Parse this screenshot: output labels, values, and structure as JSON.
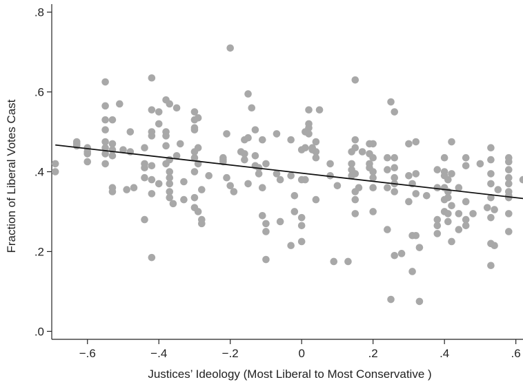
{
  "chart_data": {
    "type": "scatter",
    "title": "",
    "xlabel": "Justices’ Ideology (Most Liberal to Most Conservative )",
    "ylabel": "Fraction of Liberal Votes Cast",
    "xlim": [
      -0.7,
      0.62
    ],
    "ylim": [
      -0.02,
      0.82
    ],
    "x_ticks": [
      -0.6,
      -0.4,
      -0.2,
      0,
      0.2,
      0.4,
      0.6
    ],
    "x_tick_labels": [
      "−.6",
      "−.4",
      "−.2",
      "0",
      ".2",
      ".4",
      ".6"
    ],
    "y_ticks": [
      0.0,
      0.2,
      0.4,
      0.6,
      0.8
    ],
    "y_tick_labels": [
      ".0",
      ".2",
      ".4",
      ".6",
      ".8"
    ],
    "grid": false,
    "legend": "none",
    "point_color": "#a8a8a8",
    "line_color": "#111111",
    "fit_line": {
      "x": [
        -0.69,
        0.62
      ],
      "y": [
        0.467,
        0.333
      ]
    },
    "points": [
      [
        -0.69,
        0.42
      ],
      [
        -0.69,
        0.4
      ],
      [
        -0.63,
        0.475
      ],
      [
        -0.63,
        0.47
      ],
      [
        -0.63,
        0.465
      ],
      [
        -0.6,
        0.46
      ],
      [
        -0.6,
        0.45
      ],
      [
        -0.6,
        0.445
      ],
      [
        -0.6,
        0.425
      ],
      [
        -0.55,
        0.625
      ],
      [
        -0.55,
        0.565
      ],
      [
        -0.55,
        0.53
      ],
      [
        -0.55,
        0.505
      ],
      [
        -0.55,
        0.475
      ],
      [
        -0.55,
        0.46
      ],
      [
        -0.55,
        0.445
      ],
      [
        -0.55,
        0.42
      ],
      [
        -0.53,
        0.53
      ],
      [
        -0.53,
        0.47
      ],
      [
        -0.53,
        0.455
      ],
      [
        -0.53,
        0.44
      ],
      [
        -0.53,
        0.36
      ],
      [
        -0.53,
        0.35
      ],
      [
        -0.51,
        0.57
      ],
      [
        -0.5,
        0.455
      ],
      [
        -0.49,
        0.355
      ],
      [
        -0.48,
        0.5
      ],
      [
        -0.48,
        0.45
      ],
      [
        -0.47,
        0.36
      ],
      [
        -0.44,
        0.46
      ],
      [
        -0.44,
        0.42
      ],
      [
        -0.44,
        0.41
      ],
      [
        -0.44,
        0.385
      ],
      [
        -0.44,
        0.28
      ],
      [
        -0.42,
        0.635
      ],
      [
        -0.42,
        0.555
      ],
      [
        -0.42,
        0.5
      ],
      [
        -0.42,
        0.49
      ],
      [
        -0.42,
        0.415
      ],
      [
        -0.42,
        0.38
      ],
      [
        -0.42,
        0.345
      ],
      [
        -0.42,
        0.185
      ],
      [
        -0.4,
        0.55
      ],
      [
        -0.4,
        0.52
      ],
      [
        -0.4,
        0.37
      ],
      [
        -0.38,
        0.58
      ],
      [
        -0.38,
        0.5
      ],
      [
        -0.38,
        0.49
      ],
      [
        -0.38,
        0.465
      ],
      [
        -0.38,
        0.42
      ],
      [
        -0.37,
        0.57
      ],
      [
        -0.37,
        0.43
      ],
      [
        -0.37,
        0.4
      ],
      [
        -0.37,
        0.385
      ],
      [
        -0.37,
        0.37
      ],
      [
        -0.37,
        0.35
      ],
      [
        -0.37,
        0.335
      ],
      [
        -0.36,
        0.32
      ],
      [
        -0.35,
        0.56
      ],
      [
        -0.35,
        0.44
      ],
      [
        -0.34,
        0.47
      ],
      [
        -0.33,
        0.375
      ],
      [
        -0.33,
        0.33
      ],
      [
        -0.3,
        0.55
      ],
      [
        -0.3,
        0.53
      ],
      [
        -0.3,
        0.51
      ],
      [
        -0.3,
        0.505
      ],
      [
        -0.3,
        0.45
      ],
      [
        -0.3,
        0.435
      ],
      [
        -0.3,
        0.4
      ],
      [
        -0.3,
        0.335
      ],
      [
        -0.3,
        0.31
      ],
      [
        -0.29,
        0.535
      ],
      [
        -0.29,
        0.46
      ],
      [
        -0.29,
        0.42
      ],
      [
        -0.29,
        0.3
      ],
      [
        -0.28,
        0.28
      ],
      [
        -0.28,
        0.27
      ],
      [
        -0.28,
        0.355
      ],
      [
        -0.26,
        0.39
      ],
      [
        -0.22,
        0.435
      ],
      [
        -0.22,
        0.43
      ],
      [
        -0.22,
        0.425
      ],
      [
        -0.21,
        0.495
      ],
      [
        -0.21,
        0.385
      ],
      [
        -0.2,
        0.71
      ],
      [
        -0.2,
        0.365
      ],
      [
        -0.19,
        0.35
      ],
      [
        -0.17,
        0.45
      ],
      [
        -0.16,
        0.48
      ],
      [
        -0.16,
        0.445
      ],
      [
        -0.16,
        0.43
      ],
      [
        -0.15,
        0.595
      ],
      [
        -0.15,
        0.485
      ],
      [
        -0.15,
        0.37
      ],
      [
        -0.14,
        0.56
      ],
      [
        -0.13,
        0.505
      ],
      [
        -0.13,
        0.44
      ],
      [
        -0.13,
        0.415
      ],
      [
        -0.12,
        0.41
      ],
      [
        -0.12,
        0.395
      ],
      [
        -0.11,
        0.48
      ],
      [
        -0.11,
        0.36
      ],
      [
        -0.11,
        0.29
      ],
      [
        -0.1,
        0.42
      ],
      [
        -0.1,
        0.27
      ],
      [
        -0.1,
        0.25
      ],
      [
        -0.1,
        0.18
      ],
      [
        -0.07,
        0.495
      ],
      [
        -0.07,
        0.395
      ],
      [
        -0.06,
        0.38
      ],
      [
        -0.06,
        0.275
      ],
      [
        -0.03,
        0.48
      ],
      [
        -0.03,
        0.39
      ],
      [
        -0.03,
        0.215
      ],
      [
        -0.02,
        0.34
      ],
      [
        -0.02,
        0.3
      ],
      [
        0.0,
        0.455
      ],
      [
        0.0,
        0.38
      ],
      [
        0.0,
        0.285
      ],
      [
        0.0,
        0.265
      ],
      [
        0.0,
        0.225
      ],
      [
        0.01,
        0.5
      ],
      [
        0.01,
        0.46
      ],
      [
        0.01,
        0.38
      ],
      [
        0.02,
        0.555
      ],
      [
        0.02,
        0.52
      ],
      [
        0.02,
        0.51
      ],
      [
        0.02,
        0.495
      ],
      [
        0.03,
        0.46
      ],
      [
        0.03,
        0.455
      ],
      [
        0.04,
        0.475
      ],
      [
        0.04,
        0.45
      ],
      [
        0.04,
        0.435
      ],
      [
        0.04,
        0.33
      ],
      [
        0.05,
        0.555
      ],
      [
        0.08,
        0.42
      ],
      [
        0.08,
        0.39
      ],
      [
        0.09,
        0.175
      ],
      [
        0.1,
        0.365
      ],
      [
        0.13,
        0.175
      ],
      [
        0.14,
        0.45
      ],
      [
        0.14,
        0.42
      ],
      [
        0.14,
        0.405
      ],
      [
        0.14,
        0.39
      ],
      [
        0.15,
        0.63
      ],
      [
        0.15,
        0.48
      ],
      [
        0.15,
        0.46
      ],
      [
        0.15,
        0.395
      ],
      [
        0.15,
        0.35
      ],
      [
        0.15,
        0.33
      ],
      [
        0.15,
        0.295
      ],
      [
        0.16,
        0.36
      ],
      [
        0.17,
        0.45
      ],
      [
        0.19,
        0.47
      ],
      [
        0.19,
        0.445
      ],
      [
        0.19,
        0.42
      ],
      [
        0.19,
        0.41
      ],
      [
        0.2,
        0.47
      ],
      [
        0.2,
        0.435
      ],
      [
        0.2,
        0.4
      ],
      [
        0.2,
        0.385
      ],
      [
        0.2,
        0.36
      ],
      [
        0.2,
        0.3
      ],
      [
        0.24,
        0.435
      ],
      [
        0.24,
        0.405
      ],
      [
        0.24,
        0.36
      ],
      [
        0.24,
        0.255
      ],
      [
        0.25,
        0.575
      ],
      [
        0.25,
        0.08
      ],
      [
        0.26,
        0.55
      ],
      [
        0.26,
        0.435
      ],
      [
        0.26,
        0.41
      ],
      [
        0.26,
        0.385
      ],
      [
        0.26,
        0.37
      ],
      [
        0.26,
        0.35
      ],
      [
        0.26,
        0.19
      ],
      [
        0.28,
        0.195
      ],
      [
        0.3,
        0.47
      ],
      [
        0.3,
        0.39
      ],
      [
        0.3,
        0.325
      ],
      [
        0.31,
        0.37
      ],
      [
        0.31,
        0.24
      ],
      [
        0.31,
        0.15
      ],
      [
        0.32,
        0.475
      ],
      [
        0.32,
        0.395
      ],
      [
        0.32,
        0.345
      ],
      [
        0.32,
        0.24
      ],
      [
        0.33,
        0.21
      ],
      [
        0.33,
        0.075
      ],
      [
        0.35,
        0.34
      ],
      [
        0.38,
        0.405
      ],
      [
        0.38,
        0.36
      ],
      [
        0.38,
        0.28
      ],
      [
        0.38,
        0.265
      ],
      [
        0.38,
        0.245
      ],
      [
        0.4,
        0.435
      ],
      [
        0.4,
        0.4
      ],
      [
        0.4,
        0.39
      ],
      [
        0.4,
        0.36
      ],
      [
        0.4,
        0.33
      ],
      [
        0.4,
        0.3
      ],
      [
        0.41,
        0.38
      ],
      [
        0.41,
        0.35
      ],
      [
        0.41,
        0.335
      ],
      [
        0.41,
        0.295
      ],
      [
        0.41,
        0.275
      ],
      [
        0.42,
        0.475
      ],
      [
        0.42,
        0.395
      ],
      [
        0.42,
        0.315
      ],
      [
        0.42,
        0.225
      ],
      [
        0.44,
        0.36
      ],
      [
        0.44,
        0.295
      ],
      [
        0.44,
        0.255
      ],
      [
        0.46,
        0.435
      ],
      [
        0.46,
        0.415
      ],
      [
        0.46,
        0.325
      ],
      [
        0.46,
        0.28
      ],
      [
        0.46,
        0.265
      ],
      [
        0.48,
        0.295
      ],
      [
        0.5,
        0.42
      ],
      [
        0.52,
        0.31
      ],
      [
        0.53,
        0.46
      ],
      [
        0.53,
        0.43
      ],
      [
        0.53,
        0.395
      ],
      [
        0.53,
        0.37
      ],
      [
        0.53,
        0.335
      ],
      [
        0.53,
        0.285
      ],
      [
        0.53,
        0.22
      ],
      [
        0.53,
        0.165
      ],
      [
        0.54,
        0.305
      ],
      [
        0.54,
        0.215
      ],
      [
        0.55,
        0.355
      ],
      [
        0.58,
        0.435
      ],
      [
        0.58,
        0.425
      ],
      [
        0.58,
        0.405
      ],
      [
        0.58,
        0.385
      ],
      [
        0.58,
        0.37
      ],
      [
        0.58,
        0.35
      ],
      [
        0.58,
        0.34
      ],
      [
        0.58,
        0.335
      ],
      [
        0.58,
        0.295
      ],
      [
        0.58,
        0.25
      ],
      [
        0.62,
        0.38
      ]
    ]
  }
}
